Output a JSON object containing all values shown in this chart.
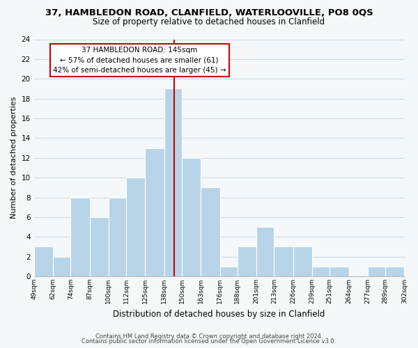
{
  "title": "37, HAMBLEDON ROAD, CLANFIELD, WATERLOOVILLE, PO8 0QS",
  "subtitle": "Size of property relative to detached houses in Clanfield",
  "xlabel": "Distribution of detached houses by size in Clanfield",
  "ylabel": "Number of detached properties",
  "bar_edges": [
    49,
    62,
    74,
    87,
    100,
    112,
    125,
    138,
    150,
    163,
    176,
    188,
    201,
    213,
    226,
    239,
    251,
    264,
    277,
    289,
    302
  ],
  "bar_heights": [
    3,
    2,
    8,
    6,
    8,
    10,
    13,
    19,
    12,
    9,
    1,
    3,
    5,
    3,
    3,
    1,
    1,
    0,
    1,
    1
  ],
  "bar_color": "#b8d4e8",
  "bar_edge_color": "#ffffff",
  "grid_color": "#d0d8e0",
  "reference_line_x": 145,
  "reference_line_color": "#cc0000",
  "ylim": [
    0,
    24
  ],
  "yticks": [
    0,
    2,
    4,
    6,
    8,
    10,
    12,
    14,
    16,
    18,
    20,
    22,
    24
  ],
  "annotation_title": "37 HAMBLEDON ROAD: 145sqm",
  "annotation_line1": "← 57% of detached houses are smaller (61)",
  "annotation_line2": "42% of semi-detached houses are larger (45) →",
  "annotation_box_color": "#ffffff",
  "annotation_box_edge_color": "#cc0000",
  "tick_labels": [
    "49sqm",
    "62sqm",
    "74sqm",
    "87sqm",
    "100sqm",
    "112sqm",
    "125sqm",
    "138sqm",
    "150sqm",
    "163sqm",
    "176sqm",
    "188sqm",
    "201sqm",
    "213sqm",
    "226sqm",
    "239sqm",
    "251sqm",
    "264sqm",
    "277sqm",
    "289sqm",
    "302sqm"
  ],
  "footer_line1": "Contains HM Land Registry data © Crown copyright and database right 2024.",
  "footer_line2": "Contains public sector information licensed under the Open Government Licence v3.0.",
  "background_color": "#f5f8fa",
  "title_fontsize": 9.5,
  "subtitle_fontsize": 8.5,
  "xlabel_fontsize": 8.5,
  "ylabel_fontsize": 8,
  "tick_fontsize": 6.5,
  "ytick_fontsize": 7.5,
  "annotation_fontsize": 7.5,
  "footer_fontsize": 6
}
